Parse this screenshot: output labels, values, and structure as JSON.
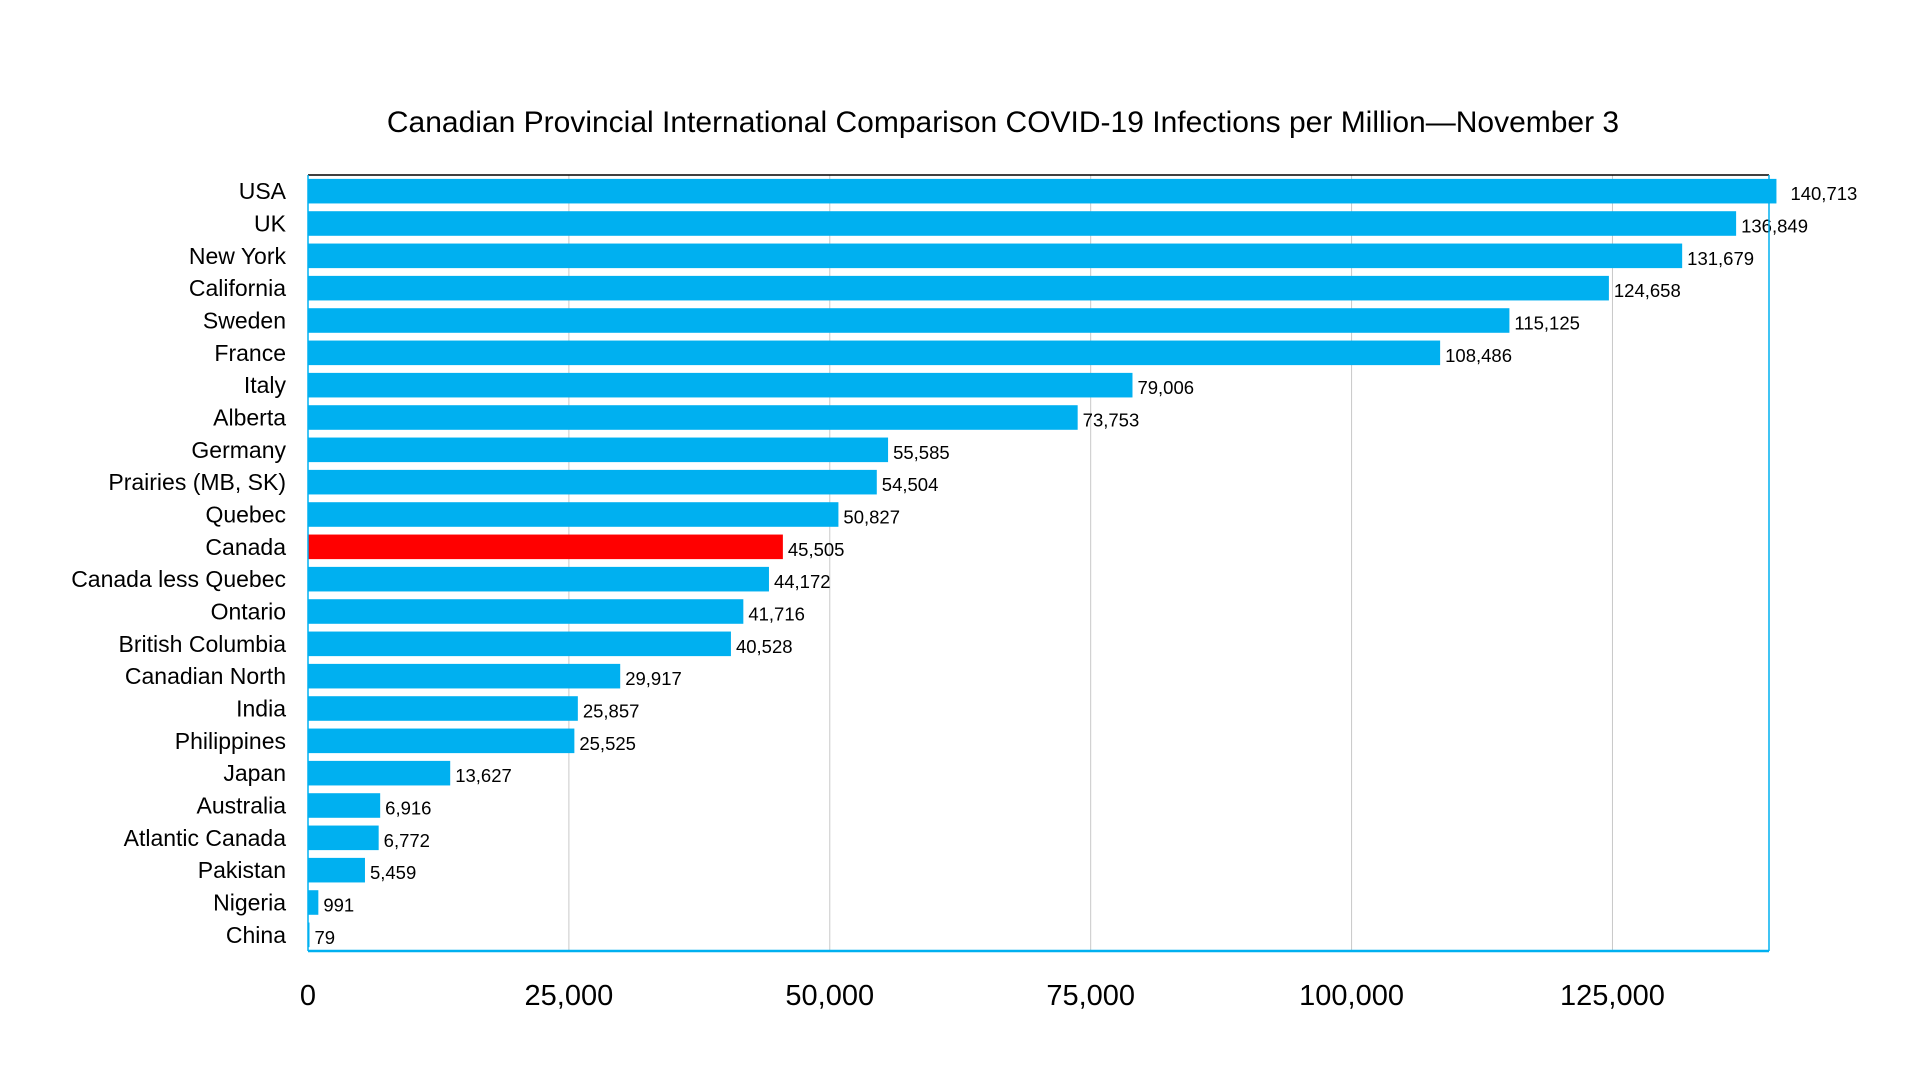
{
  "chart_data": {
    "type": "bar",
    "orientation": "horizontal",
    "title": "Canadian Provincial International Comparison COVID-19 Infections per Million—November 3",
    "xlabel": "",
    "ylabel": "",
    "xlim": [
      0,
      140000
    ],
    "xticks": [
      0,
      25000,
      50000,
      75000,
      100000,
      125000
    ],
    "xtick_labels": [
      "0",
      "25,000",
      "50,000",
      "75,000",
      "100,000",
      "125,000"
    ],
    "grid": "vertical",
    "legend": "none",
    "categories": [
      "USA",
      "UK",
      "New York",
      "California",
      "Sweden",
      "France",
      "Italy",
      "Alberta",
      "Germany",
      "Prairies (MB, SK)",
      "Quebec",
      "Canada",
      "Canada less Quebec",
      "Ontario",
      "British Columbia",
      "Canadian North",
      "India",
      "Philippines",
      "Japan",
      "Australia",
      "Atlantic Canada",
      "Pakistan",
      "Nigeria",
      "China"
    ],
    "values": [
      140713,
      136849,
      131679,
      124658,
      115125,
      108486,
      79006,
      73753,
      55585,
      54504,
      50827,
      45505,
      44172,
      41716,
      40528,
      29917,
      25857,
      25525,
      13627,
      6916,
      6772,
      5459,
      991,
      79
    ],
    "value_labels": [
      "140,713",
      "136,849",
      "131,679",
      "124,658",
      "115,125",
      "108,486",
      "79,006",
      "73,753",
      "55,585",
      "54,504",
      "50,827",
      "45,505",
      "44,172",
      "41,716",
      "40,528",
      "29,917",
      "25,857",
      "25,525",
      "13,627",
      "6,916",
      "6,772",
      "5,459",
      "991",
      "79"
    ],
    "highlight_category": "Canada",
    "colors": {
      "bar": "#00b0f0",
      "highlight": "#ff0000",
      "grid": "#c8c8c8",
      "axis": "#00b0f0"
    }
  }
}
